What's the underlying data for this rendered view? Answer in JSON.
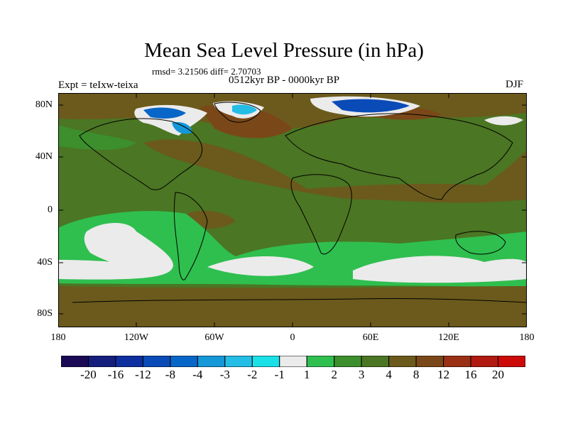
{
  "title": "Mean Sea Level Pressure (in hPa)",
  "stats": "rmsd= 3.21506 diff= 2.70703",
  "period": "0512kyr BP - 0000kyr BP",
  "experiment": "Expt = teIxw-teixa",
  "season": "DJF",
  "lat_ticks": [
    "80N",
    "40N",
    "0",
    "40S",
    "80S"
  ],
  "lon_ticks": [
    "180",
    "120W",
    "60W",
    "0",
    "60E",
    "120E",
    "180"
  ],
  "colorbar": {
    "labels": [
      "-20",
      "-16",
      "-12",
      "-8",
      "-4",
      "-3",
      "-2",
      "-1",
      "1",
      "2",
      "3",
      "4",
      "8",
      "12",
      "16",
      "20"
    ],
    "colors": [
      "#1a0a55",
      "#151e7d",
      "#0e2fa0",
      "#0a4bb8",
      "#0866c8",
      "#1498d8",
      "#24bde6",
      "#1ae0e8",
      "#ebebeb",
      "#2fbf4f",
      "#3c8f2c",
      "#4b7623",
      "#6b5a1c",
      "#7a4818",
      "#9a3015",
      "#b01a10",
      "#cc0a0a"
    ]
  }
}
